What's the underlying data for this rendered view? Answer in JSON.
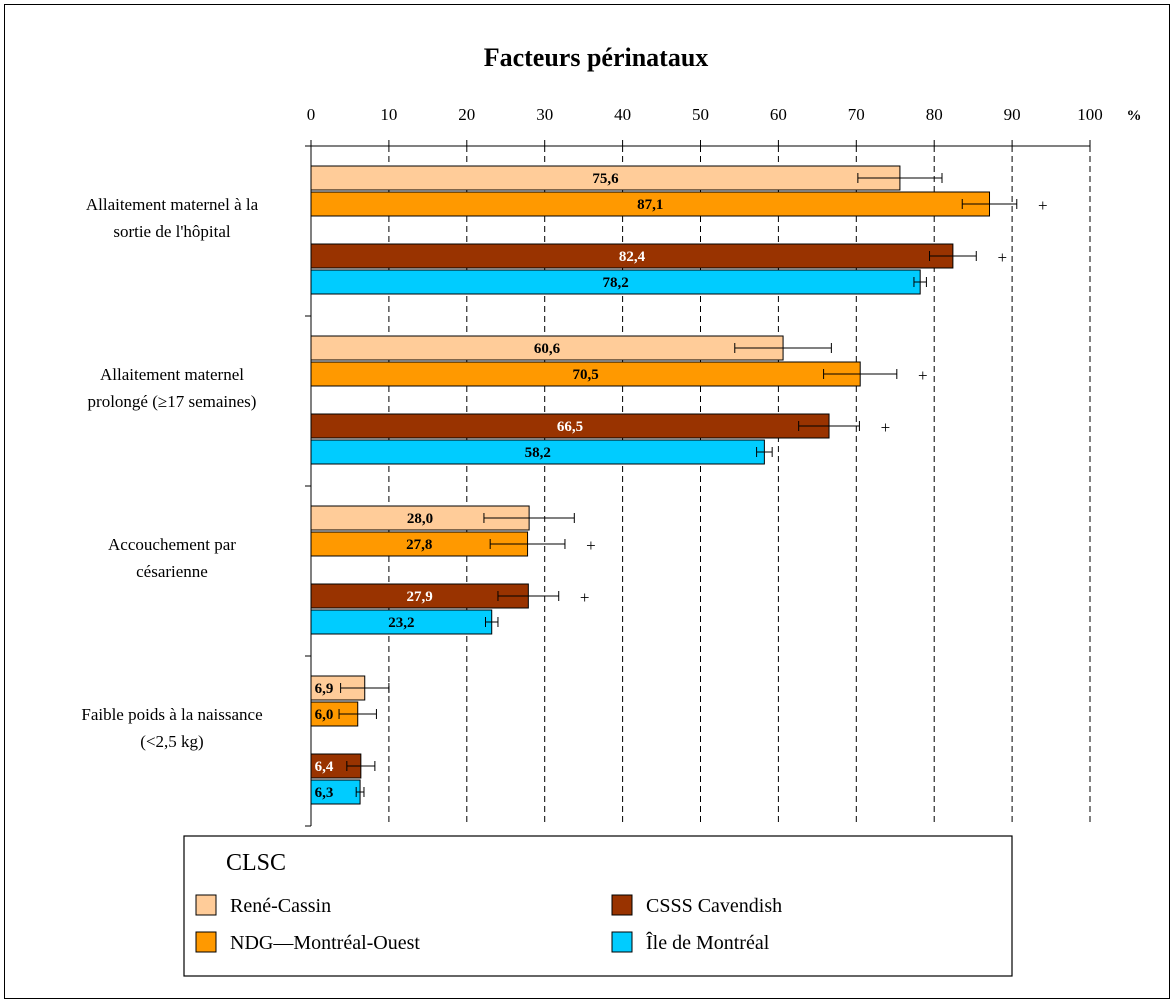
{
  "chart_data": {
    "type": "bar",
    "orientation": "horizontal",
    "title": "Facteurs périnataux",
    "unit_label": "%",
    "xlim": [
      0,
      100
    ],
    "x_ticks": [
      "0",
      "10",
      "20",
      "30",
      "40",
      "50",
      "60",
      "70",
      "80",
      "90",
      "100"
    ],
    "grid": "vertical dashed",
    "categories": [
      [
        "Allaitement maternel à la",
        "sortie de l'hôpital"
      ],
      [
        "Allaitement maternel",
        "prolongé (≥17 semaines)"
      ],
      [
        "Accouchement par",
        "césarienne"
      ],
      [
        "Faible poids à la naissance",
        "(<2,5 kg)"
      ]
    ],
    "series": [
      {
        "name": "René-Cassin",
        "color": "#FFCC99",
        "values": [
          75.6,
          60.6,
          28.0,
          6.9
        ],
        "labels": [
          "75,6",
          "60,6",
          "28,0",
          "6,9"
        ],
        "ci": [
          [
            70.2,
            81.0
          ],
          [
            54.4,
            66.8
          ],
          [
            22.2,
            33.8
          ],
          [
            3.8,
            10.0
          ]
        ],
        "significant": [
          false,
          false,
          false,
          false
        ]
      },
      {
        "name": "NDG—Montréal-Ouest",
        "color": "#FF9900",
        "values": [
          87.1,
          70.5,
          27.8,
          6.0
        ],
        "labels": [
          "87,1",
          "70,5",
          "27,8",
          "6,0"
        ],
        "ci": [
          [
            83.6,
            90.6
          ],
          [
            65.8,
            75.2
          ],
          [
            23.0,
            32.6
          ],
          [
            3.6,
            8.4
          ]
        ],
        "significant": [
          true,
          true,
          true,
          false
        ]
      },
      {
        "name": "CSSS Cavendish",
        "color": "#993300",
        "values": [
          82.4,
          66.5,
          27.9,
          6.4
        ],
        "labels": [
          "82,4",
          "66,5",
          "27,9",
          "6,4"
        ],
        "ci": [
          [
            79.4,
            85.4
          ],
          [
            62.6,
            70.4
          ],
          [
            24.0,
            31.8
          ],
          [
            4.6,
            8.2
          ]
        ],
        "significant": [
          true,
          true,
          true,
          false
        ]
      },
      {
        "name": "Île de Montréal",
        "color": "#00CCFF",
        "values": [
          78.2,
          58.2,
          23.2,
          6.3
        ],
        "labels": [
          "78,2",
          "58,2",
          "23,2",
          "6,3"
        ],
        "ci": [
          [
            77.4,
            79.0
          ],
          [
            57.2,
            59.2
          ],
          [
            22.4,
            24.0
          ],
          [
            5.8,
            6.8
          ]
        ],
        "significant": [
          false,
          false,
          false,
          false
        ]
      }
    ],
    "significance_marker": "+",
    "legend": {
      "title": "CLSC",
      "position": "bottom"
    }
  }
}
